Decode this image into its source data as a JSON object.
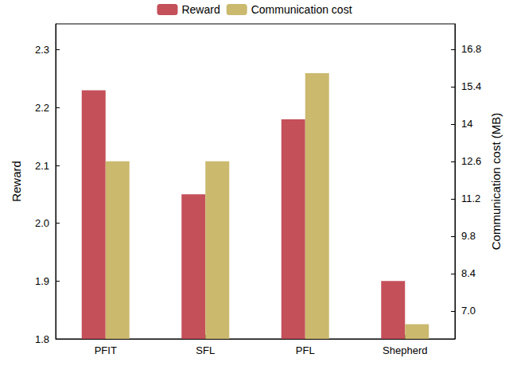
{
  "chart_data": {
    "type": "bar",
    "categories": [
      "PFIT",
      "SFL",
      "PFL",
      "Shepherd"
    ],
    "y_label": "Reward",
    "y2_label": "Communication cost (MB)",
    "series": [
      {
        "name": "Reward",
        "color": "#c4505a",
        "values": [
          2.23,
          2.05,
          2.18,
          1.9
        ]
      },
      {
        "name": "Communication cost",
        "color": "#cbb96e",
        "axis": "y2",
        "values": [
          12.6,
          12.6,
          15.9,
          6.5
        ]
      }
    ],
    "ylim": [
      1.8,
      2.345
    ],
    "yticks": [
      1.8,
      1.9,
      {
        "value": 2,
        "label": "2.0"
      },
      2.1,
      2.2,
      2.3
    ],
    "y2lim": [
      5.95,
      17.75
    ],
    "y2ticks": [
      {
        "value": 7,
        "label": "7.0"
      },
      8.4,
      9.8,
      11.2,
      12.6,
      14,
      15.4,
      16.8
    ],
    "legend": "top",
    "grid": false
  }
}
